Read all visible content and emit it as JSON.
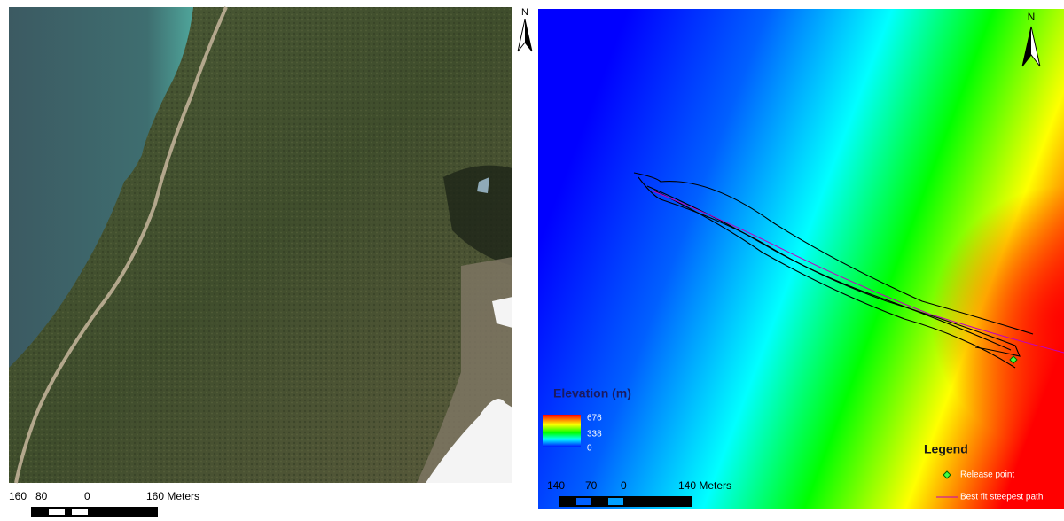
{
  "left_map": {
    "north": "N",
    "scale_labels": [
      "160",
      "80",
      "0",
      "160 Meters"
    ]
  },
  "right_map": {
    "north": "N",
    "scale_labels": [
      "140",
      "70",
      "0",
      "140 Meters"
    ],
    "elevation": {
      "title": "Elevation (m)",
      "labels": [
        "676",
        "338",
        "0"
      ]
    },
    "legend": {
      "title": "Legend",
      "items": [
        "Release point",
        "Best fit steepest path"
      ]
    }
  }
}
